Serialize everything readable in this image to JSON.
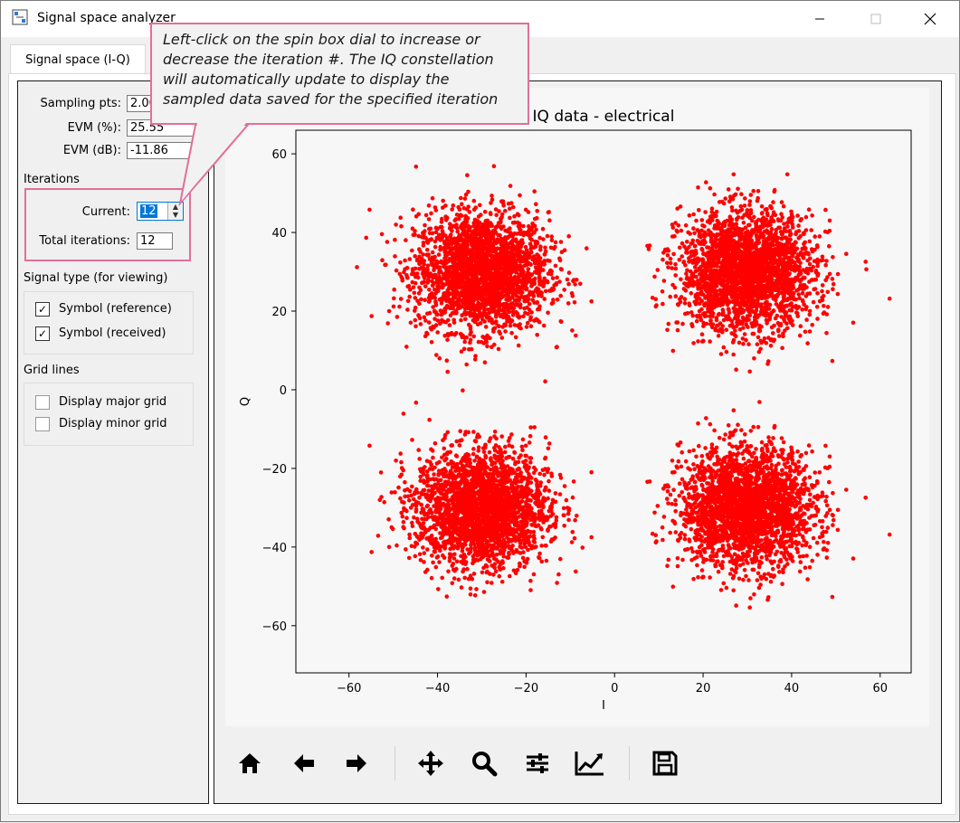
{
  "window": {
    "title": "Signal space analyzer",
    "minimize_icon": "minimize-icon",
    "maximize_icon": "maximize-icon",
    "close_icon": "close-icon"
  },
  "tabs": [
    {
      "label": "Signal space (I-Q)",
      "active": true
    }
  ],
  "metrics": {
    "sampling_label": "Sampling pts:",
    "sampling_value": "2.00",
    "evm_pct_label": "EVM (%):",
    "evm_pct_value": "25.55",
    "evm_db_label": "EVM (dB):",
    "evm_db_value": "-11.86"
  },
  "iterations": {
    "title": "Iterations",
    "current_label": "Current:",
    "current_value": "12",
    "total_label": "Total iterations:",
    "total_value": "12"
  },
  "signal_type": {
    "title": "Signal type (for viewing)",
    "items": [
      {
        "label": "Symbol (reference)",
        "checked": true
      },
      {
        "label": "Symbol (received)",
        "checked": true
      }
    ]
  },
  "grid_lines": {
    "title": "Grid lines",
    "items": [
      {
        "label": "Display major grid",
        "checked": false
      },
      {
        "label": "Display minor grid",
        "checked": false
      }
    ]
  },
  "tooltip": {
    "line1": "Left-click on the spin box dial to increase or",
    "line2": "decrease the iteration #. The IQ constellation",
    "line3": "will automatically update to display the",
    "line4": "sampled data saved for the specified iteration"
  },
  "toolbar": {
    "icons": [
      "home-icon",
      "back-arrow-icon",
      "forward-arrow-icon",
      "pan-icon",
      "zoom-icon",
      "configure-subplots-icon",
      "edit-axes-icon",
      "save-icon"
    ]
  },
  "colors": {
    "point": "#ff0000",
    "highlight": "#e0709a",
    "selection": "#0078d7"
  },
  "chart_data": {
    "type": "scatter",
    "title": "IQ data - electrical",
    "xlabel": "I",
    "ylabel": "Q",
    "xlim": [
      -72,
      67
    ],
    "ylim": [
      -72,
      66
    ],
    "xticks": [
      "−60",
      "−40",
      "−20",
      "0",
      "20",
      "40",
      "60"
    ],
    "yticks": [
      "60",
      "40",
      "20",
      "0",
      "−20",
      "−40",
      "−60"
    ],
    "grid": false,
    "series": [
      {
        "clusters": [
          {
            "center": [
              -30,
              30
            ],
            "spread": 7.5
          },
          {
            "center": [
              30,
              30
            ],
            "spread": 7.5
          },
          {
            "center": [
              -30,
              -30
            ],
            "spread": 7.5
          },
          {
            "center": [
              30,
              -30
            ],
            "spread": 7.5
          }
        ],
        "points_per_cluster": 2500,
        "color": "#ff0000"
      }
    ]
  }
}
